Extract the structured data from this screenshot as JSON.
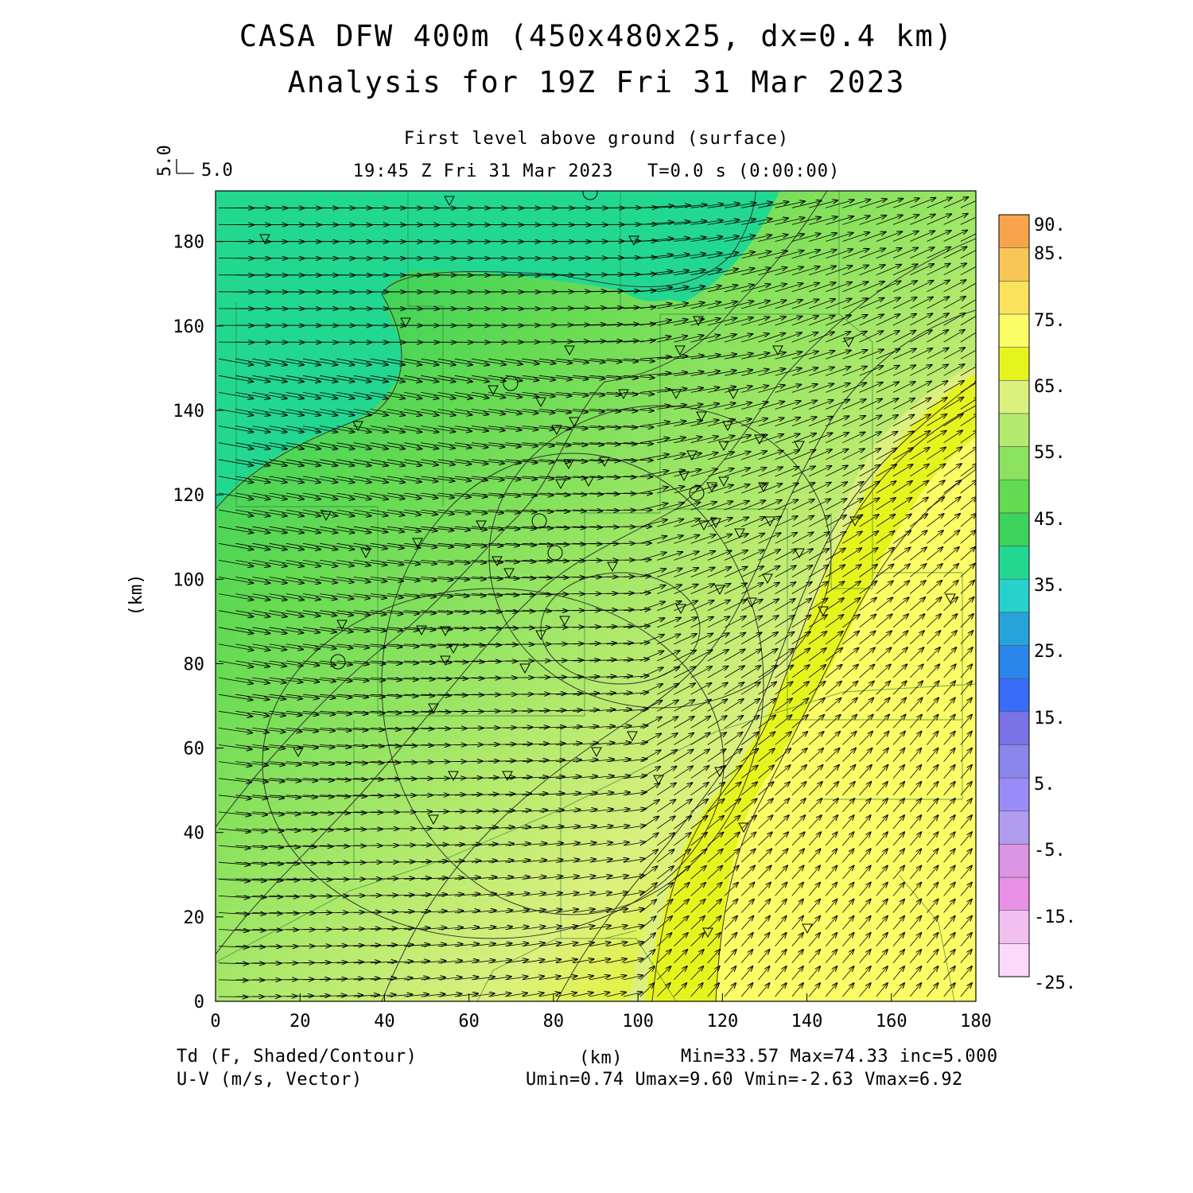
{
  "title_line1": "CASA DFW 400m (450x480x25, dx=0.4 km)",
  "title_line2": "Analysis for 19Z Fri 31 Mar 2023",
  "subtitle_line1": "First level above ground (surface)",
  "subtitle_line2": "19:45 Z Fri 31 Mar 2023   T=0.0 s (0:00:00)",
  "ref_vector": {
    "u_label": "5.0",
    "v_label": "5.0"
  },
  "footer": {
    "left1": "Td (F, Shaded/Contour)",
    "left2": "U-V (m/s, Vector)",
    "center": "(km)",
    "right1": "Min=33.57 Max=74.33 inc=5.000",
    "right2": "Umin=0.74 Umax=9.60 Vmin=-2.63 Vmax=6.92"
  },
  "colors": {
    "cb": [
      "#fcd8fc",
      "#f2c0f0",
      "#e890e6",
      "#dc94e4",
      "#b09cee",
      "#9a8cf8",
      "#8a86ee",
      "#7a72e6",
      "#3a6cfa",
      "#2a86ea",
      "#25a4dc",
      "#28d2cc",
      "#22d890",
      "#3cd25c",
      "#62da52",
      "#8ae25e",
      "#b4ea6e",
      "#dcf07e",
      "#e6f41e",
      "#fcfc66",
      "#fae25c",
      "#f8c656",
      "#f8a44a"
    ],
    "field_stops": [
      "#22d890",
      "#3cd25c",
      "#62da52",
      "#8ae25e",
      "#b4ea6e",
      "#dcf07e",
      "#e6f41e",
      "#fcfc66"
    ]
  },
  "chart_data": {
    "type": "heatmap",
    "x_range_km": [
      0,
      180
    ],
    "y_range_km": [
      0,
      192
    ],
    "x_ticks": [
      "0",
      "20",
      "40",
      "60",
      "80",
      "100",
      "120",
      "140",
      "160",
      "180"
    ],
    "y_ticks": [
      "0",
      "20",
      "40",
      "60",
      "80",
      "100",
      "120",
      "140",
      "160",
      "180"
    ],
    "ylabel": "(km)",
    "colorbar_labels": [
      "90.",
      "85.",
      "75.",
      "65.",
      "55.",
      "45.",
      "35.",
      "25.",
      "15.",
      "5.",
      "-5.",
      "-15.",
      "-25."
    ],
    "td_min": 33.57,
    "td_max": 74.33,
    "contour_inc": 5.0,
    "umin": 0.74,
    "umax": 9.6,
    "vmin": -2.63,
    "vmax": 6.92
  }
}
